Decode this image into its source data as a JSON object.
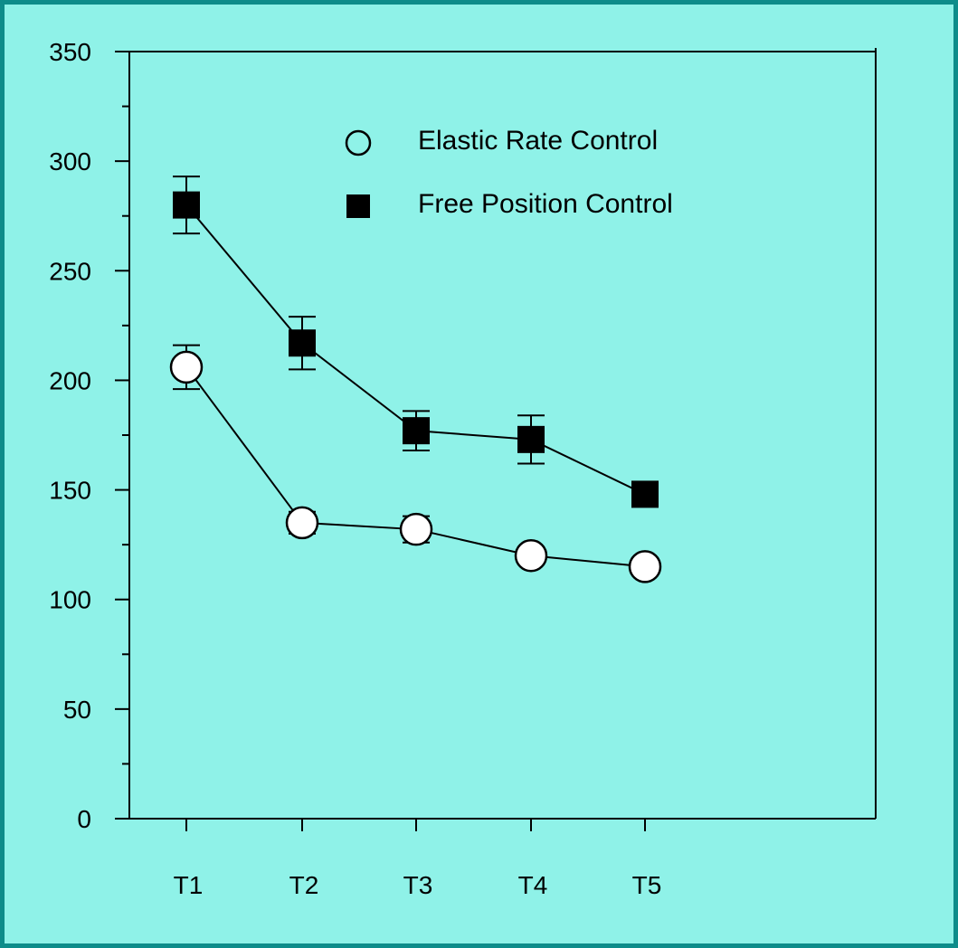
{
  "chart_data": {
    "type": "line",
    "title": "",
    "xlabel": "",
    "ylabel": "",
    "categories": [
      "T1",
      "T2",
      "T3",
      "T4",
      "T5"
    ],
    "ylim": [
      0,
      350
    ],
    "yticks": [
      0,
      50,
      100,
      150,
      200,
      250,
      300,
      350
    ],
    "grid": false,
    "legend": "top-right",
    "series": [
      {
        "name": "Elastic Rate Control",
        "marker": "circle-open",
        "values": [
          206,
          135,
          132,
          120,
          115
        ],
        "error": [
          10,
          5,
          6,
          4,
          4
        ]
      },
      {
        "name": "Free Position Control",
        "marker": "square-filled",
        "values": [
          280,
          217,
          177,
          173,
          148
        ],
        "error": [
          13,
          12,
          9,
          11,
          5
        ]
      }
    ],
    "colors": {
      "background": "#8ff2e8",
      "border": "#0e8c8a",
      "ink": "#000000"
    }
  }
}
